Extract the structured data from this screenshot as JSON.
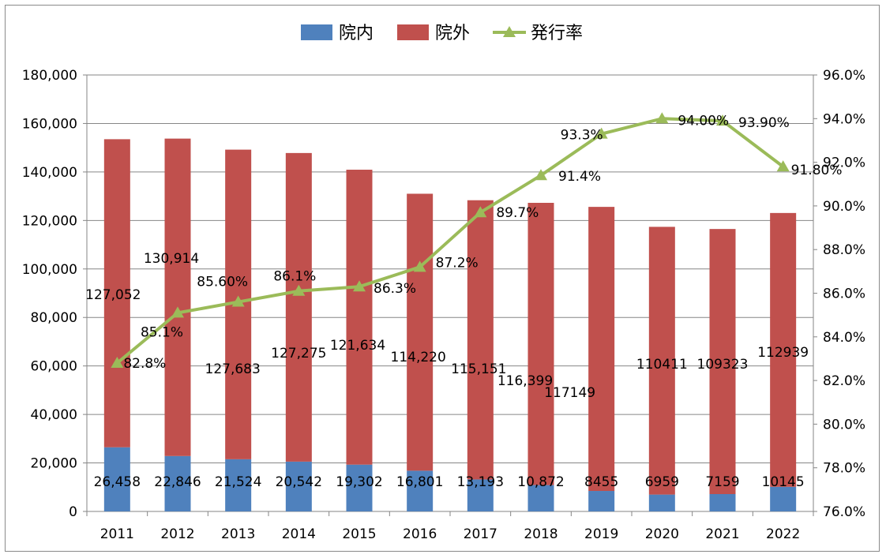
{
  "chart_data": {
    "type": "bar",
    "stacked": true,
    "categories": [
      "2011",
      "2012",
      "2013",
      "2014",
      "2015",
      "2016",
      "2017",
      "2018",
      "2019",
      "2020",
      "2021",
      "2022"
    ],
    "series": [
      {
        "name": "院内",
        "kind": "bar",
        "axis": "left",
        "color": "#4F81BD",
        "values": [
          26458,
          22846,
          21524,
          20542,
          19302,
          16801,
          13193,
          10872,
          8455,
          6959,
          7159,
          10145
        ],
        "labels": [
          "26,458",
          "22,846",
          "21,524",
          "20,542",
          "19,302",
          "16,801",
          "13,193",
          "10,872",
          "8455",
          "6959",
          "7159",
          "10145"
        ]
      },
      {
        "name": "院外",
        "kind": "bar",
        "axis": "left",
        "color": "#C0504D",
        "values": [
          127052,
          130914,
          127683,
          127275,
          121634,
          114220,
          115151,
          116399,
          117149,
          110411,
          109323,
          112939
        ],
        "labels": [
          "127,052",
          "130,914",
          "127,683",
          "127,275",
          "121,634",
          "114,220",
          "115,151",
          "116,399",
          "117149",
          "110411",
          "109323",
          "112939"
        ]
      },
      {
        "name": "発行率",
        "kind": "line",
        "axis": "right",
        "color": "#9BBB59",
        "marker": "triangle",
        "values": [
          82.8,
          85.1,
          85.6,
          86.1,
          86.3,
          87.2,
          89.7,
          91.4,
          93.3,
          94.0,
          93.9,
          91.8
        ],
        "labels": [
          "82.8%",
          "85.1%",
          "85.60%",
          "86.1%",
          "86.3%",
          "87.2%",
          "89.7%",
          "91.4%",
          "93.3%",
          "94.00%",
          "93.90%",
          "91.80%"
        ]
      }
    ],
    "y_left": {
      "ylim": [
        0,
        180000
      ],
      "ticks": [
        "0",
        "20,000",
        "40,000",
        "60,000",
        "80,000",
        "100,000",
        "120,000",
        "140,000",
        "160,000",
        "180,000"
      ]
    },
    "y_right": {
      "ylim": [
        76,
        96
      ],
      "ticks": [
        "76.0%",
        "78.0%",
        "80.0%",
        "82.0%",
        "84.0%",
        "86.0%",
        "88.0%",
        "90.0%",
        "92.0%",
        "94.0%",
        "96.0%"
      ]
    },
    "grid": true,
    "legend_position": "top-center"
  }
}
